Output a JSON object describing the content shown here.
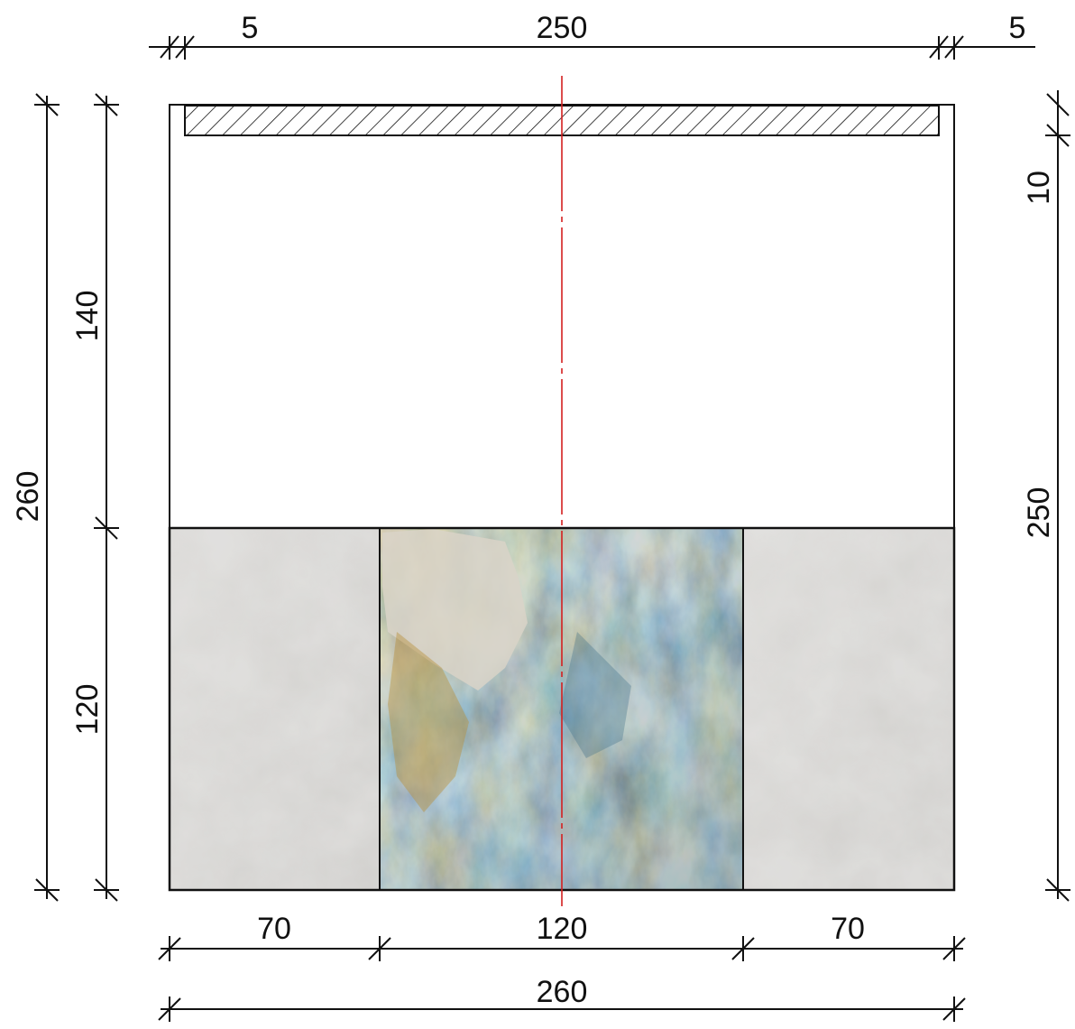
{
  "dimensions": {
    "top_left": "5",
    "top_center": "250",
    "top_right": "5",
    "left_outer": "260",
    "left_upper": "140",
    "left_lower": "120",
    "right_small": "10",
    "right_total": "250",
    "bottom_left": "70",
    "bottom_center": "120",
    "bottom_right": "70",
    "bottom_total": "260"
  },
  "colors": {
    "line": "#111111",
    "centerline": "#d42020",
    "concrete": "#c9c7c3",
    "stone_base": "#5c6a63"
  }
}
